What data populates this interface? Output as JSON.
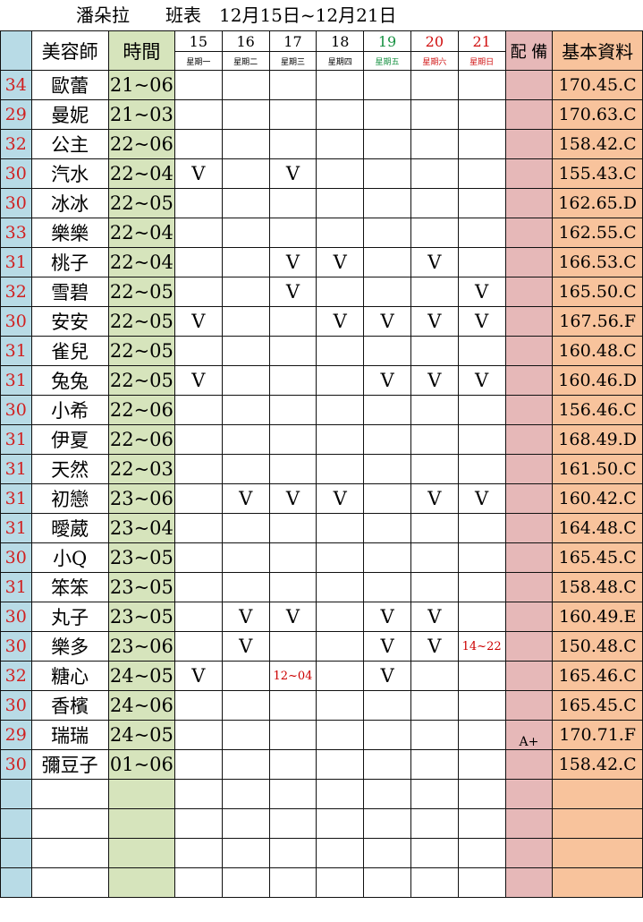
{
  "title": "潘朵拉　　班表　12月15日~12月21日",
  "headers": {
    "name": "美容師",
    "time": "時間",
    "equip": "配 備",
    "info": "基本資料"
  },
  "days": [
    {
      "num": "15",
      "wk": "星期一"
    },
    {
      "num": "16",
      "wk": "星期二"
    },
    {
      "num": "17",
      "wk": "星期三"
    },
    {
      "num": "18",
      "wk": "星期四"
    },
    {
      "num": "19",
      "wk": "星期五",
      "color": "#159040"
    },
    {
      "num": "20",
      "wk": "星期六",
      "color": "#d01010"
    },
    {
      "num": "21",
      "wk": "星期日",
      "color": "#d01010"
    }
  ],
  "rows": [
    {
      "age": "34",
      "name": "歐蕾",
      "time": "21~06",
      "marks": [
        "",
        "",
        "",
        "",
        "",
        "",
        ""
      ],
      "equip": "",
      "info": "170.45.C"
    },
    {
      "age": "29",
      "name": "曼妮",
      "time": "21~03",
      "marks": [
        "",
        "",
        "",
        "",
        "",
        "",
        ""
      ],
      "equip": "",
      "info": "170.63.C"
    },
    {
      "age": "32",
      "name": "公主",
      "time": "22~06",
      "marks": [
        "",
        "",
        "",
        "",
        "",
        "",
        ""
      ],
      "equip": "",
      "info": "158.42.C"
    },
    {
      "age": "30",
      "name": "汽水",
      "time": "22~04",
      "marks": [
        "V",
        "",
        "V",
        "",
        "",
        "",
        ""
      ],
      "equip": "",
      "info": "155.43.C"
    },
    {
      "age": "30",
      "name": "冰冰",
      "time": "22~05",
      "marks": [
        "",
        "",
        "",
        "",
        "",
        "",
        ""
      ],
      "equip": "",
      "info": "162.65.D"
    },
    {
      "age": "33",
      "name": "樂樂",
      "time": "22~04",
      "marks": [
        "",
        "",
        "",
        "",
        "",
        "",
        ""
      ],
      "equip": "",
      "info": "162.55.C"
    },
    {
      "age": "31",
      "name": "桃子",
      "time": "22~04",
      "marks": [
        "",
        "",
        "V",
        "V",
        "",
        "V",
        ""
      ],
      "equip": "",
      "info": "166.53.C"
    },
    {
      "age": "32",
      "name": "雪碧",
      "time": "22~05",
      "marks": [
        "",
        "",
        "V",
        "",
        "",
        "",
        "V"
      ],
      "equip": "",
      "info": "165.50.C"
    },
    {
      "age": "30",
      "name": "安安",
      "time": "22~05",
      "marks": [
        "V",
        "",
        "",
        "V",
        "V",
        "V",
        "V"
      ],
      "equip": "",
      "info": "167.56.F"
    },
    {
      "age": "31",
      "name": "雀兒",
      "time": "22~05",
      "marks": [
        "",
        "",
        "",
        "",
        "",
        "",
        ""
      ],
      "equip": "",
      "info": "160.48.C"
    },
    {
      "age": "31",
      "name": "兔兔",
      "time": "22~05",
      "marks": [
        "V",
        "",
        "",
        "",
        "V",
        "V",
        "V"
      ],
      "equip": "",
      "info": "160.46.D"
    },
    {
      "age": "30",
      "name": "小希",
      "time": "22~06",
      "marks": [
        "",
        "",
        "",
        "",
        "",
        "",
        ""
      ],
      "equip": "",
      "info": "156.46.C"
    },
    {
      "age": "31",
      "name": "伊夏",
      "time": "22~06",
      "marks": [
        "",
        "",
        "",
        "",
        "",
        "",
        ""
      ],
      "equip": "",
      "info": "168.49.D"
    },
    {
      "age": "31",
      "name": "天然",
      "time": "22~03",
      "marks": [
        "",
        "",
        "",
        "",
        "",
        "",
        ""
      ],
      "equip": "",
      "info": "161.50.C"
    },
    {
      "age": "31",
      "name": "初戀",
      "time": "23~06",
      "marks": [
        "",
        "V",
        "V",
        "V",
        "",
        "V",
        "V"
      ],
      "equip": "",
      "info": "160.42.C"
    },
    {
      "age": "31",
      "name": "曖葳",
      "time": "23~04",
      "marks": [
        "",
        "",
        "",
        "",
        "",
        "",
        ""
      ],
      "equip": "",
      "info": "164.48.C"
    },
    {
      "age": "30",
      "name": "小Q",
      "time": "23~05",
      "marks": [
        "",
        "",
        "",
        "",
        "",
        "",
        ""
      ],
      "equip": "",
      "info": "165.45.C"
    },
    {
      "age": "31",
      "name": "笨笨",
      "time": "23~05",
      "marks": [
        "",
        "",
        "",
        "",
        "",
        "",
        ""
      ],
      "equip": "",
      "info": "158.48.C"
    },
    {
      "age": "30",
      "name": "丸子",
      "time": "23~05",
      "marks": [
        "",
        "V",
        "V",
        "",
        "V",
        "V",
        ""
      ],
      "equip": "",
      "info": "160.49.E"
    },
    {
      "age": "30",
      "name": "樂多",
      "time": "23~06",
      "marks": [
        "",
        "V",
        "",
        "",
        "V",
        "V",
        "14~22"
      ],
      "equip": "",
      "info": "150.48.C"
    },
    {
      "age": "32",
      "name": "糖心",
      "time": "24~05",
      "marks": [
        "V",
        "",
        "12~04",
        "",
        "V",
        "",
        ""
      ],
      "equip": "",
      "info": "165.46.C"
    },
    {
      "age": "30",
      "name": "香檳",
      "time": "24~06",
      "marks": [
        "",
        "",
        "",
        "",
        "",
        "",
        ""
      ],
      "equip": "",
      "info": "165.45.C"
    },
    {
      "age": "29",
      "name": "瑞瑞",
      "time": "24~05",
      "marks": [
        "",
        "",
        "",
        "",
        "",
        "",
        ""
      ],
      "equip": "A+",
      "info": "170.71.F"
    },
    {
      "age": "30",
      "name": "彌豆子",
      "time": "01~06",
      "marks": [
        "",
        "",
        "",
        "",
        "",
        "",
        ""
      ],
      "equip": "",
      "info": "158.42.C"
    }
  ]
}
